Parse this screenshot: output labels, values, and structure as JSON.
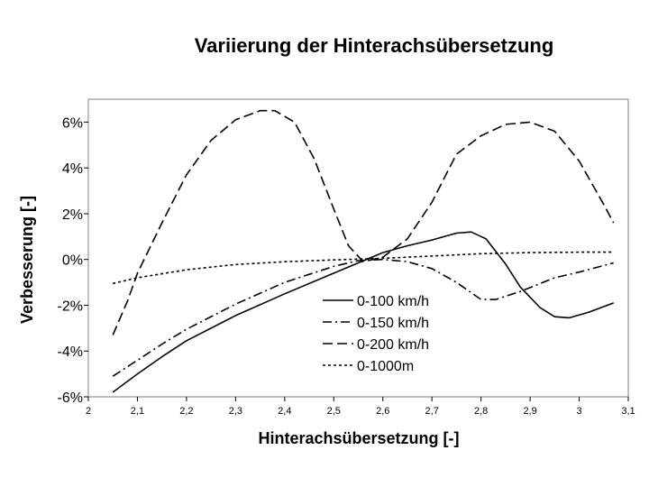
{
  "chart_data": {
    "type": "line",
    "title": "Variierung der Hinterachsübersetzung",
    "xlabel": "Hinterachsübersetzung [-]",
    "ylabel": "Verbesserung [-]",
    "xlim": [
      2.0,
      3.1
    ],
    "ylim": [
      -6,
      7
    ],
    "x_ticks": [
      2.0,
      2.1,
      2.2,
      2.3,
      2.4,
      2.5,
      2.6,
      2.7,
      2.8,
      2.9,
      3.0,
      3.1
    ],
    "x_tick_labels": [
      "2",
      "2,1",
      "2,2",
      "2,3",
      "2,4",
      "2,5",
      "2,6",
      "2,7",
      "2,8",
      "2,9",
      "3",
      "3,1"
    ],
    "y_ticks": [
      -6,
      -4,
      -2,
      0,
      2,
      4,
      6
    ],
    "y_tick_labels": [
      "-6%",
      "-4%",
      "-2%",
      "0%",
      "2%",
      "4%",
      "6%"
    ],
    "grid": false,
    "legend_position": "bottom-center",
    "series": [
      {
        "name": "0-100 km/h",
        "dash": "solid",
        "points": [
          [
            2.05,
            -5.8
          ],
          [
            2.1,
            -5.0
          ],
          [
            2.15,
            -4.25
          ],
          [
            2.2,
            -3.55
          ],
          [
            2.3,
            -2.45
          ],
          [
            2.4,
            -1.5
          ],
          [
            2.5,
            -0.6
          ],
          [
            2.55,
            -0.15
          ],
          [
            2.6,
            0.3
          ],
          [
            2.65,
            0.6
          ],
          [
            2.7,
            0.85
          ],
          [
            2.75,
            1.15
          ],
          [
            2.78,
            1.2
          ],
          [
            2.81,
            0.9
          ],
          [
            2.85,
            -0.2
          ],
          [
            2.88,
            -1.2
          ],
          [
            2.92,
            -2.1
          ],
          [
            2.95,
            -2.5
          ],
          [
            2.98,
            -2.55
          ],
          [
            3.02,
            -2.3
          ],
          [
            3.07,
            -1.9
          ]
        ]
      },
      {
        "name": "0-150 km/h",
        "dash": "dashdot",
        "points": [
          [
            2.05,
            -5.1
          ],
          [
            2.1,
            -4.4
          ],
          [
            2.15,
            -3.7
          ],
          [
            2.2,
            -3.05
          ],
          [
            2.3,
            -1.95
          ],
          [
            2.4,
            -1.0
          ],
          [
            2.5,
            -0.3
          ],
          [
            2.55,
            -0.05
          ],
          [
            2.6,
            0.0
          ],
          [
            2.65,
            -0.1
          ],
          [
            2.7,
            -0.4
          ],
          [
            2.75,
            -1.0
          ],
          [
            2.8,
            -1.75
          ],
          [
            2.83,
            -1.75
          ],
          [
            2.88,
            -1.4
          ],
          [
            2.95,
            -0.8
          ],
          [
            3.0,
            -0.55
          ],
          [
            3.07,
            -0.15
          ]
        ]
      },
      {
        "name": "0-200 km/h",
        "dash": "dashed",
        "points": [
          [
            2.05,
            -3.3
          ],
          [
            2.08,
            -1.8
          ],
          [
            2.1,
            -0.6
          ],
          [
            2.15,
            1.6
          ],
          [
            2.2,
            3.7
          ],
          [
            2.25,
            5.2
          ],
          [
            2.3,
            6.1
          ],
          [
            2.35,
            6.5
          ],
          [
            2.38,
            6.5
          ],
          [
            2.42,
            6.0
          ],
          [
            2.46,
            4.4
          ],
          [
            2.5,
            2.2
          ],
          [
            2.53,
            0.6
          ],
          [
            2.56,
            -0.1
          ],
          [
            2.6,
            0.1
          ],
          [
            2.65,
            0.9
          ],
          [
            2.7,
            2.5
          ],
          [
            2.75,
            4.6
          ],
          [
            2.8,
            5.4
          ],
          [
            2.85,
            5.9
          ],
          [
            2.9,
            6.0
          ],
          [
            2.95,
            5.6
          ],
          [
            3.0,
            4.3
          ],
          [
            3.05,
            2.4
          ],
          [
            3.07,
            1.6
          ]
        ]
      },
      {
        "name": "0-1000m",
        "dash": "dotted",
        "points": [
          [
            2.05,
            -1.05
          ],
          [
            2.1,
            -0.8
          ],
          [
            2.2,
            -0.45
          ],
          [
            2.3,
            -0.22
          ],
          [
            2.4,
            -0.1
          ],
          [
            2.5,
            -0.02
          ],
          [
            2.6,
            0.05
          ],
          [
            2.7,
            0.15
          ],
          [
            2.8,
            0.25
          ],
          [
            2.9,
            0.3
          ],
          [
            3.0,
            0.32
          ],
          [
            3.07,
            0.32
          ]
        ]
      }
    ]
  }
}
